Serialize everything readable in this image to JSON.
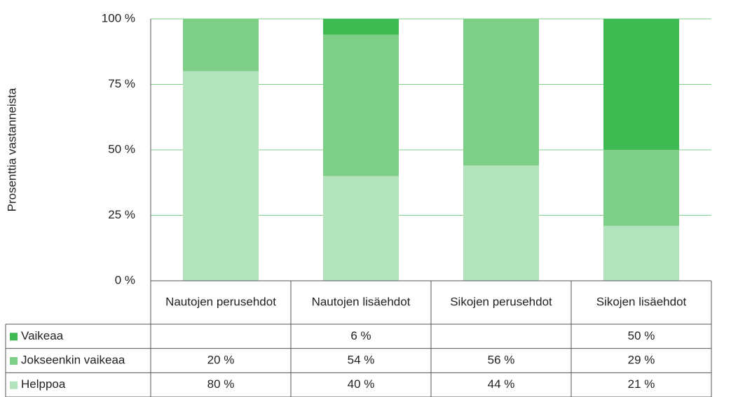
{
  "chart_data": {
    "type": "stacked_bar",
    "y_label": "Prosenttia vastanneista",
    "categories": [
      "Nautojen perusehdot",
      "Nautojen lisäehdot",
      "Sikojen perusehdot",
      "Sikojen lisäehdot"
    ],
    "series": [
      {
        "name": "Vaikeaa",
        "color": "#3fba52",
        "values": [
          null,
          6,
          null,
          50
        ],
        "value_labels": [
          null,
          "6 %",
          null,
          "50 %"
        ]
      },
      {
        "name": "Jokseenkin vaikeaa",
        "color": "#7dcf88",
        "values": [
          20,
          54,
          56,
          29
        ],
        "value_labels": [
          "20 %",
          "54 %",
          "56 %",
          "29 %"
        ]
      },
      {
        "name": "Helppoa",
        "color": "#b3e3bc",
        "values": [
          80,
          40,
          44,
          21
        ],
        "value_labels": [
          "80 %",
          "40 %",
          "44 %",
          "21 %"
        ]
      }
    ],
    "ylim": [
      0,
      100
    ],
    "yticks": [
      {
        "value": 0,
        "label": "0 %"
      },
      {
        "value": 25,
        "label": "25 %"
      },
      {
        "value": 50,
        "label": "50 %"
      },
      {
        "value": 75,
        "label": "75 %"
      },
      {
        "value": 100,
        "label": "100 %"
      }
    ],
    "grid": true
  }
}
